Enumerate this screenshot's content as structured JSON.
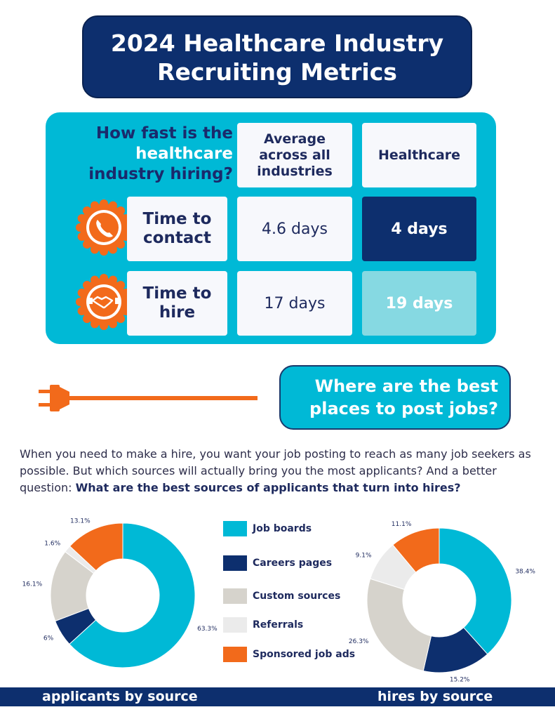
{
  "title": {
    "line1": "2024 Healthcare Industry",
    "line2": "Recruiting Metrics"
  },
  "comparison": {
    "question_a": "How fast is the",
    "question_b": "healthcare",
    "question_c": "industry hiring?",
    "col_avg": "Average across all industries",
    "col_health": "Healthcare",
    "rows": [
      {
        "label": "Time to contact",
        "avg": "4.6 days",
        "health": "4 days",
        "icon": "phone-icon"
      },
      {
        "label": "Time to hire",
        "avg": "17 days",
        "health": "19 days",
        "icon": "handshake-icon"
      }
    ]
  },
  "where": {
    "line1": "Where are the best",
    "line2": "places to post jobs?"
  },
  "intro": {
    "text": "When you need to make a hire, you want your job posting to reach as many job seekers as possible. But which sources will actually bring you the most applicants? And a better question: ",
    "bold": "What are the best sources of applicants that turn into hires?"
  },
  "colors": {
    "navy": "#0d2f6e",
    "cyan": "#00b9d6",
    "light_cyan": "#86d9e2",
    "orange": "#f26a1b",
    "Job boards": "#00b9d6",
    "Careers pages": "#0d2f6e",
    "Custom sources": "#d6d3cc",
    "Referrals": "#ebebeb",
    "Sponsored job ads": "#f26a1b"
  },
  "chart_data": [
    {
      "type": "pie",
      "title": "applicants by source",
      "categories": [
        "Job boards",
        "Careers pages",
        "Custom sources",
        "Referrals",
        "Sponsored job ads"
      ],
      "values": [
        63.3,
        6,
        16.1,
        1.6,
        13.1
      ],
      "value_labels": [
        "63.3%",
        "6%",
        "16.1%",
        "1.6%",
        "13.1%"
      ],
      "legend": "center"
    },
    {
      "type": "pie",
      "title": "hires by source",
      "categories": [
        "Job boards",
        "Careers pages",
        "Custom sources",
        "Referrals",
        "Sponsored job ads"
      ],
      "values": [
        38.4,
        15.2,
        26.3,
        9.1,
        11.1
      ],
      "value_labels": [
        "38.4%",
        "15.2%",
        "26.3%",
        "9.1%",
        "11.1%"
      ],
      "legend": "center"
    }
  ]
}
